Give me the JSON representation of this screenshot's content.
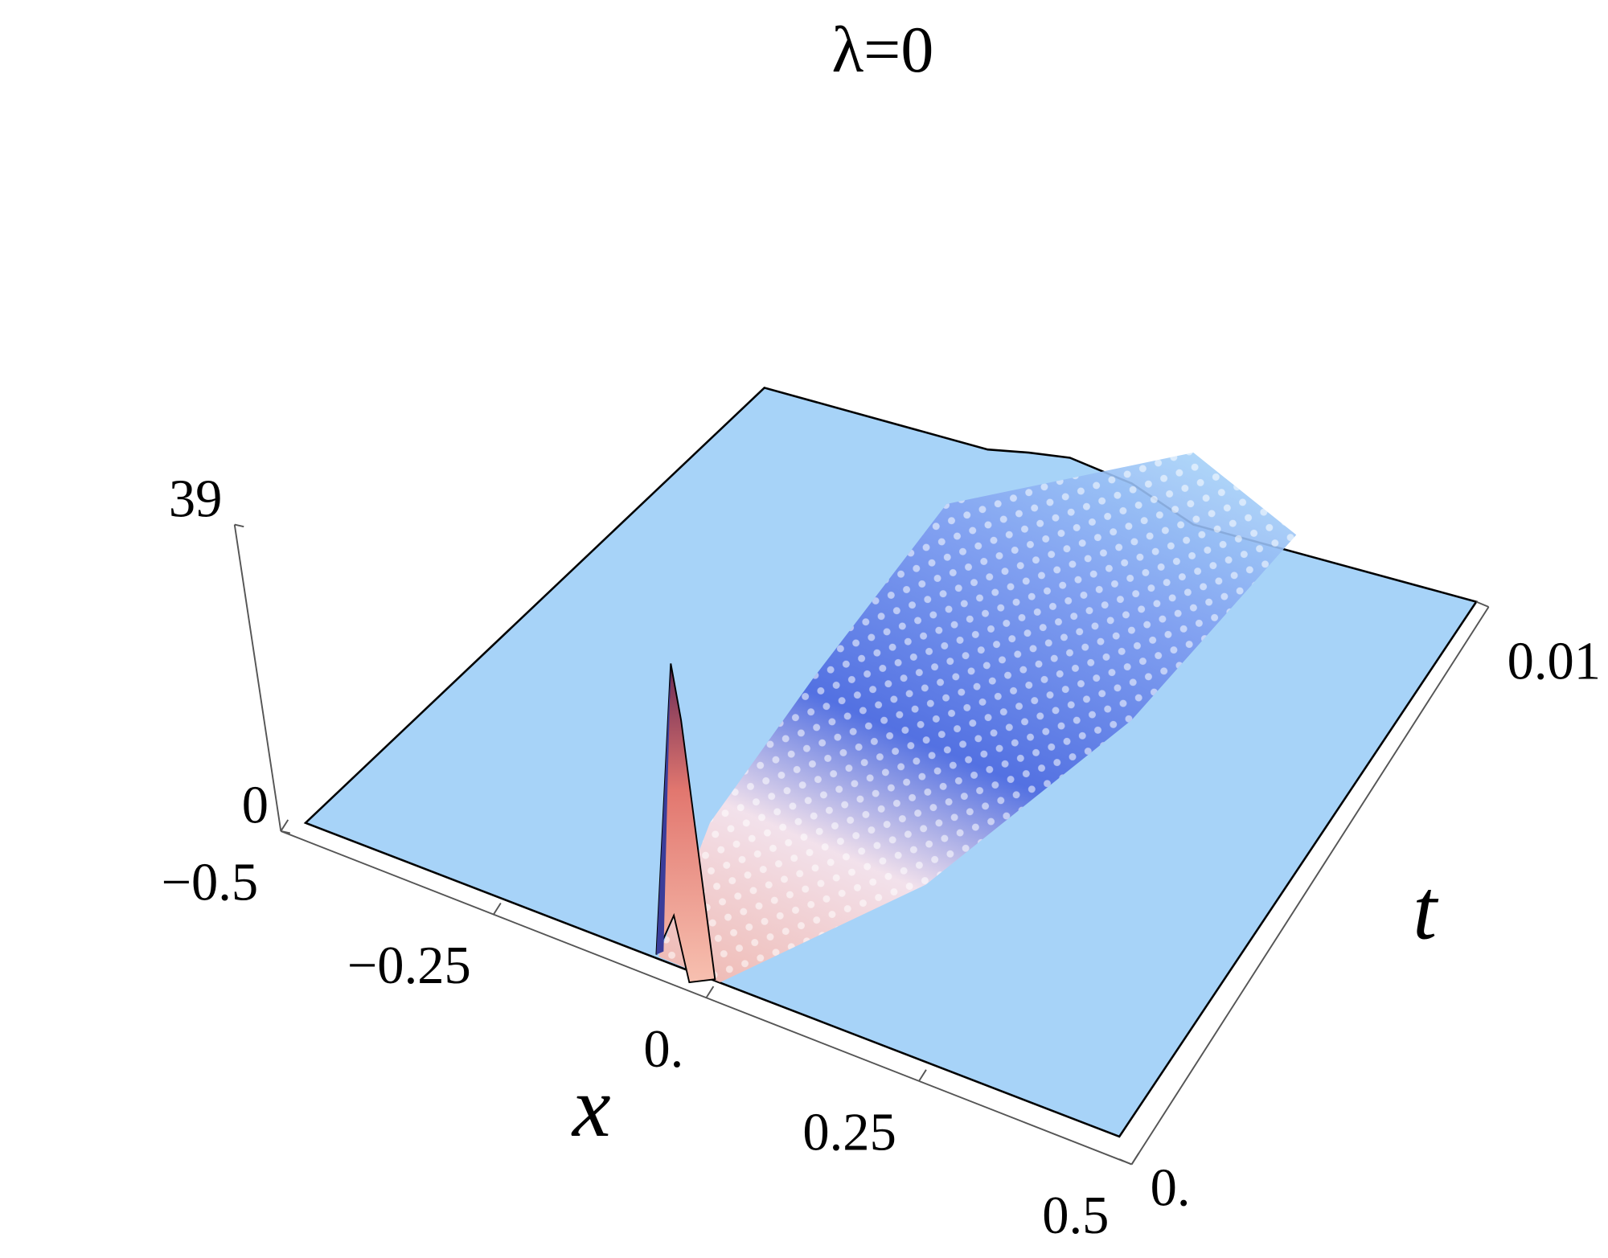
{
  "chart_data": {
    "type": "surface",
    "title": "λ=0",
    "x_label": "x",
    "y_label": "t",
    "xlim": [
      -0.5,
      0.5
    ],
    "xticks": [
      {
        "value": -0.5,
        "label": "−0.5"
      },
      {
        "value": -0.25,
        "label": "−0.25"
      },
      {
        "value": 0,
        "label": "0."
      },
      0.25,
      0.5
    ],
    "ylim": [
      0,
      0.01
    ],
    "yticks": [
      {
        "value": 0,
        "label": "0."
      },
      0.01
    ],
    "zlim": [
      0,
      39
    ],
    "zticks": [
      0,
      39
    ]
  }
}
